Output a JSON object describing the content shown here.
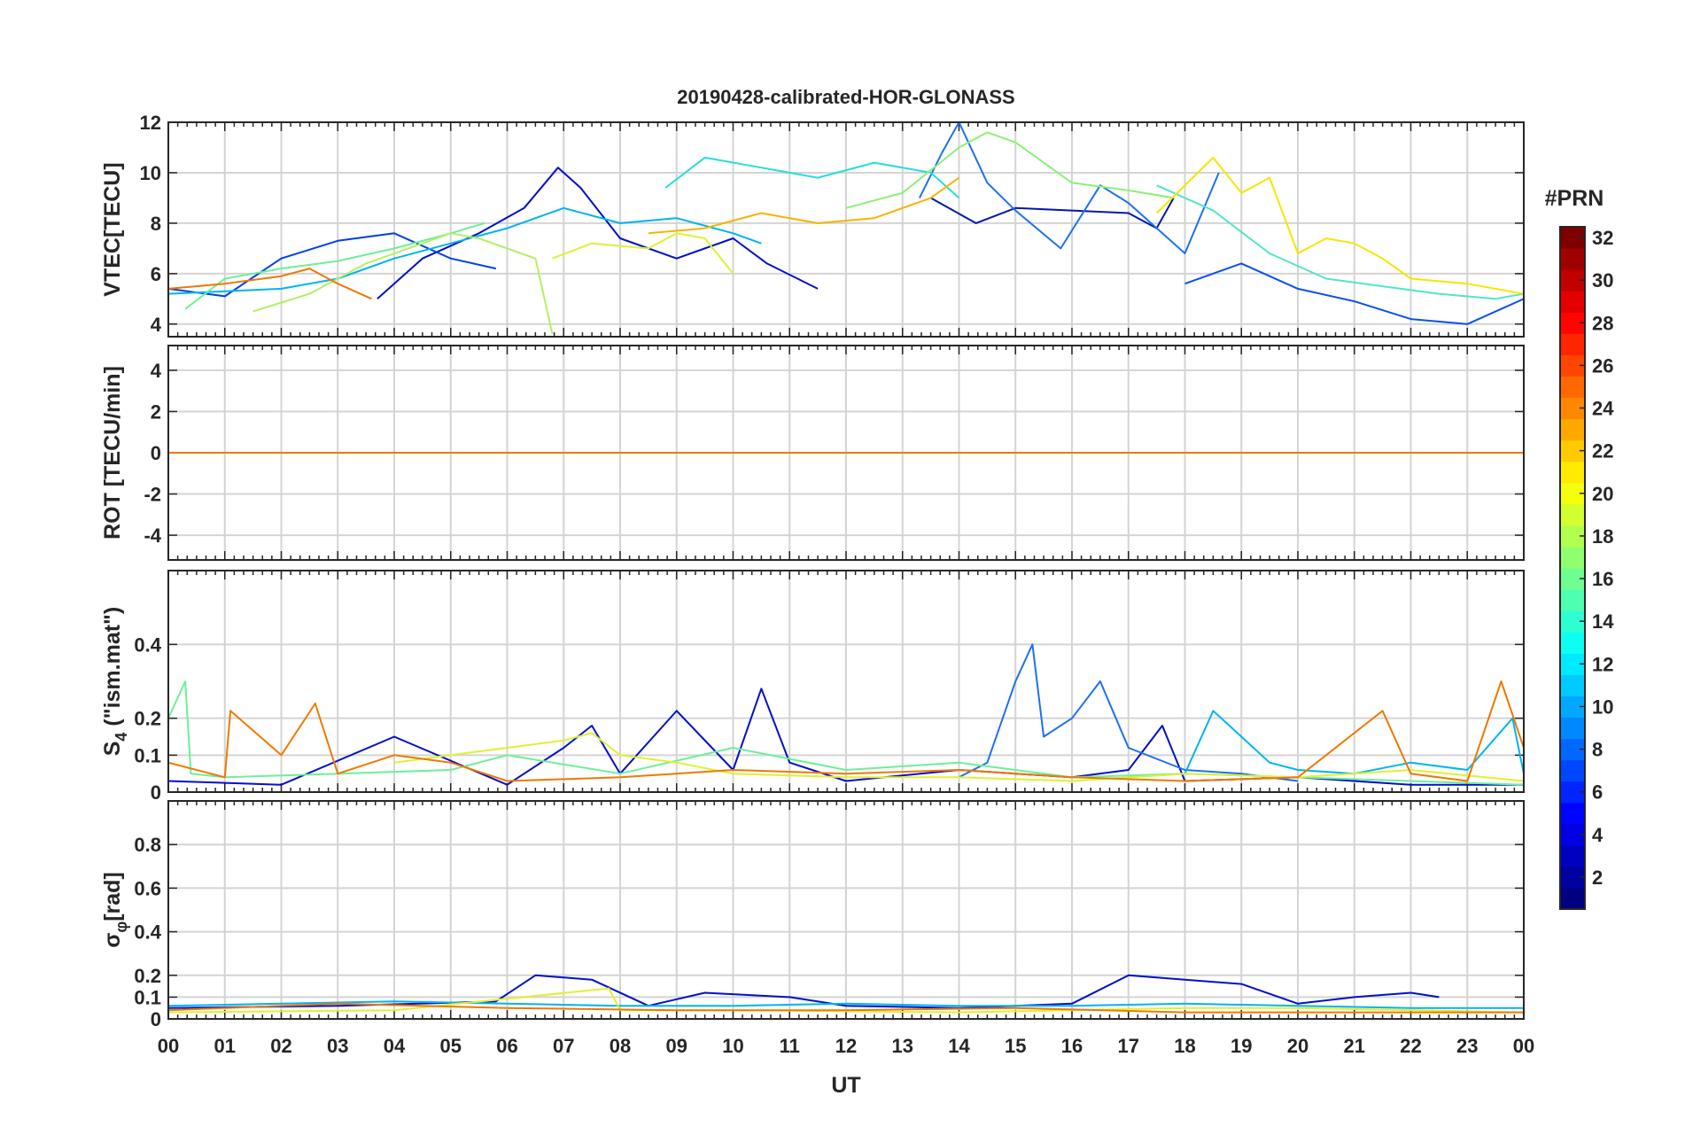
{
  "chart_data": {
    "type": "line",
    "title": "20190428-calibrated-HOR-GLONASS",
    "xlabel": "UT",
    "x_range": [
      0,
      24
    ],
    "x_tick_labels": [
      "00",
      "01",
      "02",
      "03",
      "04",
      "05",
      "06",
      "07",
      "08",
      "09",
      "10",
      "11",
      "12",
      "13",
      "14",
      "15",
      "16",
      "17",
      "18",
      "19",
      "20",
      "21",
      "22",
      "23",
      "00"
    ],
    "grid": true,
    "panels": [
      {
        "id": "vtec",
        "ylabel": "VTEC[TECU]",
        "ylim": [
          3.5,
          12
        ],
        "yticks": [
          4,
          6,
          8,
          10,
          12
        ],
        "ytick_labels": [
          "4",
          "6",
          "8",
          "10",
          "12"
        ],
        "series": [
          {
            "name": "PRN 3",
            "prn": 3,
            "color": "#0010c8",
            "x": [
              3.7,
              4.5,
              5.5,
              6.3,
              6.9,
              7.3,
              8.0,
              9.0,
              10.0,
              10.6,
              11.5
            ],
            "y": [
              5.0,
              6.6,
              7.6,
              8.6,
              10.2,
              9.4,
              7.4,
              6.6,
              7.4,
              6.4,
              5.4
            ]
          },
          {
            "name": "PRN 5",
            "prn": 5,
            "color": "#0040e8",
            "x": [
              0.0,
              1.0,
              2.0,
              3.0,
              4.0,
              5.0,
              5.8
            ],
            "y": [
              5.4,
              5.1,
              6.6,
              7.3,
              7.6,
              6.6,
              6.2
            ]
          },
          {
            "name": "PRN 2",
            "prn": 2,
            "color": "#0018a8",
            "x": [
              13.5,
              14.3,
              15.0,
              16.0,
              17.0,
              17.5,
              17.8
            ],
            "y": [
              9.0,
              8.0,
              8.6,
              8.5,
              8.4,
              7.8,
              9.0
            ]
          },
          {
            "name": "PRN 7",
            "prn": 7,
            "color": "#0a50f0",
            "x": [
              18.0,
              19.0,
              20.0,
              21.0,
              22.0,
              23.0,
              24.0
            ],
            "y": [
              5.6,
              6.4,
              5.4,
              4.9,
              4.2,
              4.0,
              5.0
            ]
          },
          {
            "name": "PRN 8",
            "prn": 8,
            "color": "#1e70f0",
            "x": [
              13.3,
              13.7,
              14.0,
              14.5,
              15.0,
              15.8,
              16.5,
              17.0,
              18.0,
              18.6
            ],
            "y": [
              9.0,
              10.8,
              12.0,
              9.6,
              8.5,
              7.0,
              9.5,
              8.8,
              6.8,
              10.0
            ]
          },
          {
            "name": "PRN 11",
            "prn": 11,
            "color": "#00b4f0",
            "x": [
              0.0,
              2.0,
              3.0,
              4.0,
              5.0,
              6.0,
              7.0,
              8.0,
              9.0,
              10.0,
              10.5
            ],
            "y": [
              5.2,
              5.4,
              5.8,
              6.6,
              7.2,
              7.8,
              8.6,
              8.0,
              8.2,
              7.6,
              7.2
            ]
          },
          {
            "name": "PRN 13",
            "prn": 13,
            "color": "#28dcdc",
            "x": [
              8.8,
              9.5,
              10.5,
              11.5,
              12.5,
              13.5,
              14.0
            ],
            "y": [
              9.4,
              10.6,
              10.2,
              9.8,
              10.4,
              10.0,
              9.0
            ]
          },
          {
            "name": "PRN 14",
            "prn": 14,
            "color": "#50e6c8",
            "x": [
              17.5,
              18.5,
              19.5,
              20.5,
              21.5,
              22.5,
              23.5,
              24.0
            ],
            "y": [
              9.5,
              8.5,
              6.8,
              5.8,
              5.5,
              5.2,
              5.0,
              5.2
            ]
          },
          {
            "name": "PRN 15",
            "prn": 15,
            "color": "#6cf096",
            "x": [
              0.3,
              1.0,
              2.0,
              3.0,
              4.0,
              5.0,
              5.6
            ],
            "y": [
              4.6,
              5.8,
              6.2,
              6.5,
              7.0,
              7.6,
              8.0
            ]
          },
          {
            "name": "PRN 16",
            "prn": 16,
            "color": "#8cf078",
            "x": [
              12.0,
              13.0,
              14.0,
              14.5,
              15.0,
              16.0,
              17.0,
              17.8
            ],
            "y": [
              8.6,
              9.2,
              11.0,
              11.6,
              11.2,
              9.6,
              9.3,
              9.0
            ]
          },
          {
            "name": "PRN 17",
            "prn": 17,
            "color": "#b4f064",
            "x": [
              1.5,
              2.5,
              3.5,
              4.5,
              5.0,
              5.5,
              6.0,
              6.5,
              6.8
            ],
            "y": [
              4.5,
              5.2,
              6.4,
              7.2,
              7.6,
              7.4,
              7.0,
              6.6,
              3.6
            ]
          },
          {
            "name": "PRN 19",
            "prn": 19,
            "color": "#e0f030",
            "x": [
              6.8,
              7.5,
              8.5,
              9.0,
              9.5,
              10.0
            ],
            "y": [
              6.6,
              7.2,
              7.0,
              7.6,
              7.4,
              6.0
            ]
          },
          {
            "name": "PRN 20",
            "prn": 20,
            "color": "#f5e600",
            "x": [
              17.5,
              18.5,
              19.0,
              19.5,
              20.0,
              20.5,
              21.0,
              21.5,
              22.0,
              23.0,
              24.0
            ],
            "y": [
              8.4,
              10.6,
              9.2,
              9.8,
              6.8,
              7.4,
              7.2,
              6.6,
              5.8,
              5.6,
              5.2
            ]
          },
          {
            "name": "PRN 22",
            "prn": 22,
            "color": "#f5b400",
            "x": [
              8.5,
              9.5,
              10.5,
              11.5,
              12.5,
              13.5,
              14.0
            ],
            "y": [
              7.6,
              7.8,
              8.4,
              8.0,
              8.2,
              9.0,
              9.8
            ]
          },
          {
            "name": "PRN 24",
            "prn": 24,
            "color": "#f07800",
            "x": [
              0.0,
              1.0,
              2.0,
              2.5,
              3.0,
              3.6
            ],
            "y": [
              5.4,
              5.6,
              5.9,
              6.2,
              5.6,
              5.0
            ]
          }
        ]
      },
      {
        "id": "rot",
        "ylabel": "ROT [TECU/min]",
        "ylim": [
          -5.2,
          5.2
        ],
        "yticks": [
          -4,
          -2,
          0,
          2,
          4
        ],
        "ytick_labels": [
          "-4",
          "-2",
          "0",
          "2",
          "4"
        ],
        "series": [
          {
            "name": "PRN 3",
            "prn": 3,
            "color": "#0010c8",
            "x": [
              0,
              6,
              12,
              18,
              24
            ],
            "y": [
              0,
              0,
              0,
              0,
              0
            ]
          },
          {
            "name": "PRN 11",
            "prn": 11,
            "color": "#00b4f0",
            "x": [
              0,
              6,
              12,
              18,
              24
            ],
            "y": [
              0,
              0,
              0,
              0,
              0
            ]
          },
          {
            "name": "PRN 16",
            "prn": 16,
            "color": "#8cf078",
            "x": [
              0,
              6,
              12,
              18,
              24
            ],
            "y": [
              0,
              0,
              0,
              0,
              0
            ]
          },
          {
            "name": "PRN 20",
            "prn": 20,
            "color": "#f5e600",
            "x": [
              0,
              6,
              12,
              18,
              24
            ],
            "y": [
              0,
              0,
              0,
              0,
              0
            ]
          },
          {
            "name": "PRN 24",
            "prn": 24,
            "color": "#f07800",
            "x": [
              0,
              6,
              12,
              18,
              24
            ],
            "y": [
              0,
              0,
              0,
              0,
              0
            ]
          }
        ]
      },
      {
        "id": "s4",
        "ylabel_main": "S",
        "ylabel_sub": "4",
        "ylabel_rest": " (\"ism.mat\")",
        "ylim": [
          0,
          0.6
        ],
        "yticks": [
          0,
          0.1,
          0.2,
          0.4
        ],
        "ytick_labels": [
          "0",
          "0.1",
          "0.2",
          "0.4"
        ],
        "series": [
          {
            "name": "PRN 3",
            "prn": 3,
            "color": "#0010c8",
            "x": [
              0,
              2,
              4,
              6,
              7,
              7.5,
              8,
              9,
              10,
              10.5,
              11,
              12,
              14,
              15,
              16,
              17,
              17.6,
              18,
              20,
              22,
              24
            ],
            "y": [
              0.03,
              0.02,
              0.15,
              0.02,
              0.12,
              0.18,
              0.05,
              0.22,
              0.06,
              0.28,
              0.08,
              0.03,
              0.06,
              0.05,
              0.04,
              0.06,
              0.18,
              0.03,
              0.04,
              0.02,
              0.02
            ]
          },
          {
            "name": "PRN 8",
            "prn": 8,
            "color": "#1e70f0",
            "x": [
              14,
              14.5,
              15,
              15.3,
              15.5,
              16,
              16.5,
              17,
              18,
              19,
              20
            ],
            "y": [
              0.04,
              0.08,
              0.3,
              0.4,
              0.15,
              0.2,
              0.3,
              0.12,
              0.06,
              0.05,
              0.03
            ]
          },
          {
            "name": "PRN 11",
            "prn": 11,
            "color": "#00b4f0",
            "x": [
              17,
              18,
              18.5,
              19,
              19.5,
              20,
              21,
              22,
              23,
              23.8,
              24
            ],
            "y": [
              0.04,
              0.05,
              0.22,
              0.15,
              0.08,
              0.06,
              0.05,
              0.08,
              0.06,
              0.2,
              0.05
            ]
          },
          {
            "name": "PRN 15",
            "prn": 15,
            "color": "#6cf096",
            "x": [
              0,
              0.3,
              0.4,
              1,
              3,
              5,
              6,
              8,
              10,
              12,
              14,
              16,
              18,
              20,
              22,
              24
            ],
            "y": [
              0.2,
              0.3,
              0.05,
              0.04,
              0.05,
              0.06,
              0.1,
              0.05,
              0.12,
              0.06,
              0.08,
              0.04,
              0.05,
              0.04,
              0.03,
              0.02
            ]
          },
          {
            "name": "PRN 19",
            "prn": 19,
            "color": "#e0f030",
            "x": [
              4,
              5,
              6,
              7,
              7.5,
              8,
              9,
              10,
              12,
              14,
              16,
              18,
              20,
              22,
              24
            ],
            "y": [
              0.08,
              0.1,
              0.12,
              0.14,
              0.16,
              0.1,
              0.08,
              0.05,
              0.04,
              0.04,
              0.03,
              0.05,
              0.04,
              0.06,
              0.03
            ]
          },
          {
            "name": "PRN 24",
            "prn": 24,
            "color": "#f07800",
            "x": [
              0,
              1,
              1.1,
              2,
              2.6,
              3,
              4,
              5,
              6,
              8,
              10,
              12,
              14,
              16,
              18,
              20,
              21.5,
              22,
              23,
              23.6,
              24
            ],
            "y": [
              0.08,
              0.04,
              0.22,
              0.1,
              0.24,
              0.05,
              0.1,
              0.08,
              0.03,
              0.04,
              0.06,
              0.05,
              0.06,
              0.04,
              0.03,
              0.04,
              0.22,
              0.05,
              0.03,
              0.3,
              0.12
            ]
          }
        ]
      },
      {
        "id": "sigma",
        "ylabel_main": "σ",
        "ylabel_sub": "φ",
        "ylabel_rest": "[rad]",
        "ylim": [
          0,
          1.0
        ],
        "yticks": [
          0,
          0.1,
          0.2,
          0.4,
          0.6,
          0.8
        ],
        "ytick_labels": [
          "0",
          "0.1",
          "0.2",
          "0.4",
          "0.6",
          "0.8"
        ],
        "series": [
          {
            "name": "PRN 3",
            "prn": 3,
            "color": "#0010c8",
            "x": [
              0,
              3,
              5.8,
              6.5,
              7.5,
              8.5,
              9.5,
              11,
              12,
              14,
              16,
              17,
              18,
              19,
              20,
              21,
              22,
              22.5
            ],
            "y": [
              0.05,
              0.06,
              0.08,
              0.2,
              0.18,
              0.06,
              0.12,
              0.1,
              0.06,
              0.05,
              0.07,
              0.2,
              0.18,
              0.16,
              0.07,
              0.1,
              0.12,
              0.1
            ]
          },
          {
            "name": "PRN 11",
            "prn": 11,
            "color": "#00b4f0",
            "x": [
              0,
              2,
              4,
              6,
              8,
              10,
              12,
              14,
              16,
              18,
              20,
              22,
              24
            ],
            "y": [
              0.06,
              0.07,
              0.08,
              0.07,
              0.06,
              0.06,
              0.07,
              0.06,
              0.06,
              0.07,
              0.06,
              0.05,
              0.05
            ]
          },
          {
            "name": "PRN 19",
            "prn": 19,
            "color": "#e0f030",
            "x": [
              0,
              4,
              7.8,
              8,
              10,
              14,
              18,
              20,
              24
            ],
            "y": [
              0.03,
              0.04,
              0.14,
              0.04,
              0.04,
              0.03,
              0.05,
              0.05,
              0.03
            ]
          },
          {
            "name": "PRN 24",
            "prn": 24,
            "color": "#f07800",
            "x": [
              0,
              3,
              6,
              9,
              12,
              15,
              18,
              21,
              24
            ],
            "y": [
              0.04,
              0.07,
              0.05,
              0.04,
              0.04,
              0.05,
              0.03,
              0.03,
              0.03
            ]
          }
        ]
      }
    ],
    "colorbar": {
      "title": "#PRN",
      "range": [
        1,
        32
      ],
      "tick_labels": [
        "2",
        "4",
        "6",
        "8",
        "10",
        "12",
        "14",
        "16",
        "18",
        "20",
        "22",
        "24",
        "26",
        "28",
        "30",
        "32"
      ],
      "colormap": "jet"
    }
  }
}
